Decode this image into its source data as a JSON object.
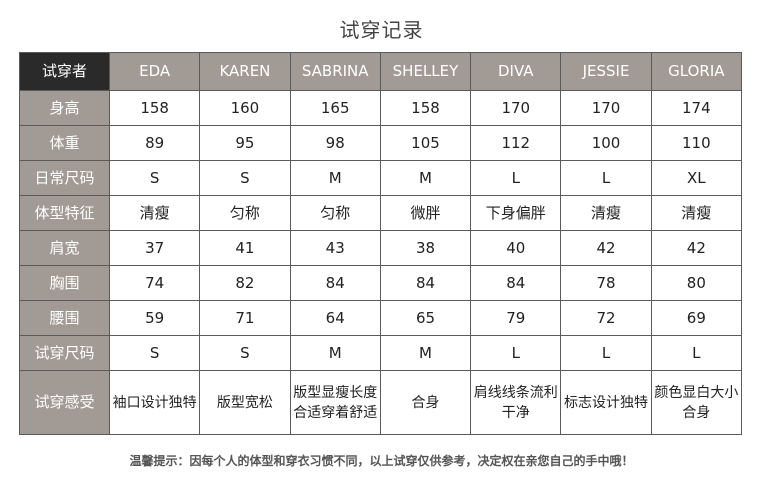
{
  "title": "试穿记录",
  "table": {
    "corner": "试穿者",
    "names": [
      "EDA",
      "KAREN",
      "SABRINA",
      "SHELLEY",
      "DIVA",
      "JESSIE",
      "GLORIA"
    ],
    "rows": [
      {
        "label": "身高",
        "values": [
          "158",
          "160",
          "165",
          "158",
          "170",
          "170",
          "174"
        ]
      },
      {
        "label": "体重",
        "values": [
          "89",
          "95",
          "98",
          "105",
          "112",
          "100",
          "110"
        ]
      },
      {
        "label": "日常尺码",
        "values": [
          "S",
          "S",
          "M",
          "M",
          "L",
          "L",
          "XL"
        ]
      },
      {
        "label": "体型特征",
        "values": [
          "清瘦",
          "匀称",
          "匀称",
          "微胖",
          "下身偏胖",
          "清瘦",
          "清瘦"
        ]
      },
      {
        "label": "肩宽",
        "values": [
          "37",
          "41",
          "43",
          "38",
          "40",
          "42",
          "42"
        ]
      },
      {
        "label": "胸围",
        "values": [
          "74",
          "82",
          "84",
          "84",
          "84",
          "78",
          "80"
        ]
      },
      {
        "label": "腰围",
        "values": [
          "59",
          "71",
          "64",
          "65",
          "79",
          "72",
          "69"
        ]
      },
      {
        "label": "试穿尺码",
        "values": [
          "S",
          "S",
          "M",
          "M",
          "L",
          "L",
          "L"
        ]
      },
      {
        "label": "试穿感受",
        "values": [
          "袖口设计独特",
          "版型宽松",
          "版型显瘦长度合适穿着舒适",
          "合身",
          "肩线线条流利干净",
          "标志设计独特",
          "颜色显白大小合身"
        ]
      }
    ]
  },
  "footer": "温馨提示：因每个人的体型和穿衣习惯不同，以上试穿仅供参考，决定权在亲您自己的手中哦！"
}
